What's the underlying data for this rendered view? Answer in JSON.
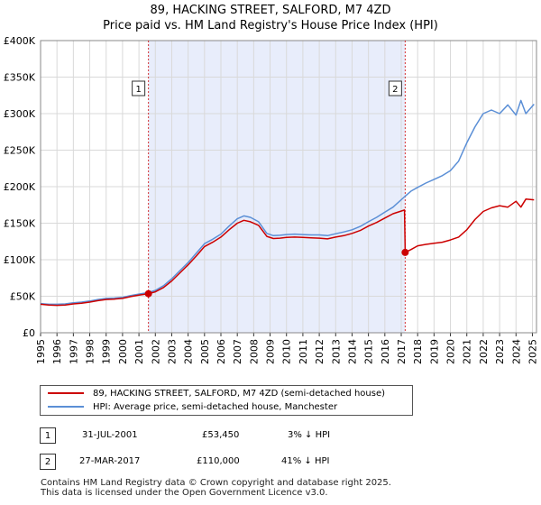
{
  "chart_data": {
    "type": "line",
    "title": "89, HACKING STREET, SALFORD, M7 4ZD",
    "subtitle": "Price paid vs. HM Land Registry's House Price Index (HPI)",
    "xlim": [
      1995,
      2025.25
    ],
    "ylim": [
      0,
      400000
    ],
    "x_ticks": [
      1995,
      1996,
      1997,
      1998,
      1999,
      2000,
      2001,
      2002,
      2003,
      2004,
      2005,
      2006,
      2007,
      2008,
      2009,
      2010,
      2011,
      2012,
      2013,
      2014,
      2015,
      2016,
      2017,
      2018,
      2019,
      2020,
      2021,
      2022,
      2023,
      2024,
      2025
    ],
    "x_tick_labels": [
      "1995",
      "1996",
      "1997",
      "1998",
      "1999",
      "2000",
      "2001",
      "2002",
      "2003",
      "2004",
      "2005",
      "2006",
      "2007",
      "2008",
      "2009",
      "2010",
      "2011",
      "2012",
      "2013",
      "2014",
      "2015",
      "2016",
      "2017",
      "2018",
      "2019",
      "2020",
      "2021",
      "2022",
      "2023",
      "2024",
      "2025"
    ],
    "y_ticks": [
      0,
      50000,
      100000,
      150000,
      200000,
      250000,
      300000,
      350000,
      400000
    ],
    "y_tick_labels": [
      "£0",
      "£50K",
      "£100K",
      "£150K",
      "£200K",
      "£250K",
      "£300K",
      "£350K",
      "£400K"
    ],
    "shaded_range": [
      2001.58,
      2017.24
    ],
    "series": [
      {
        "name": "89, HACKING STREET, SALFORD, M7 4ZD (semi-detached house)",
        "color": "#cc0000",
        "x": [
          1995,
          1995.5,
          1996,
          1996.5,
          1997,
          1997.5,
          1998,
          1998.5,
          1999,
          1999.5,
          2000,
          2000.5,
          2001,
          2001.58,
          2002,
          2002.5,
          2003,
          2003.5,
          2004,
          2004.5,
          2005,
          2005.5,
          2006,
          2006.5,
          2007,
          2007.4,
          2007.8,
          2008.3,
          2008.8,
          2009.2,
          2009.6,
          2010,
          2010.5,
          2011,
          2011.5,
          2012,
          2012.5,
          2013,
          2013.5,
          2014,
          2014.5,
          2015,
          2015.5,
          2016,
          2016.5,
          2017.2,
          2017.24,
          2017.6,
          2018,
          2018.5,
          2019,
          2019.5,
          2020,
          2020.5,
          2021,
          2021.5,
          2022,
          2022.5,
          2023,
          2023.5,
          2024,
          2024.3,
          2024.6,
          2025.1
        ],
        "values": [
          39000,
          38000,
          37500,
          38000,
          39500,
          40500,
          42000,
          44000,
          45500,
          46000,
          47000,
          49500,
          51500,
          53450,
          56000,
          62000,
          71000,
          82000,
          93000,
          105000,
          118000,
          124000,
          131000,
          141000,
          150000,
          154000,
          152000,
          147000,
          132000,
          129000,
          129500,
          130500,
          131000,
          130500,
          130000,
          129500,
          128500,
          131000,
          133000,
          136000,
          140000,
          146000,
          151000,
          157000,
          163000,
          168000,
          110000,
          114000,
          119000,
          121000,
          122500,
          124000,
          127000,
          131000,
          141000,
          155000,
          166000,
          171000,
          174000,
          172000,
          180000,
          172000,
          183000,
          182000
        ]
      },
      {
        "name": "HPI: Average price, semi-detached house, Manchester",
        "color": "#5b8fd6",
        "x": [
          1995,
          1995.5,
          1996,
          1996.5,
          1997,
          1997.5,
          1998,
          1998.5,
          1999,
          1999.5,
          2000,
          2000.5,
          2001,
          2001.58,
          2002,
          2002.5,
          2003,
          2003.5,
          2004,
          2004.5,
          2005,
          2005.5,
          2006,
          2006.5,
          2007,
          2007.4,
          2007.8,
          2008.3,
          2008.8,
          2009.2,
          2009.6,
          2010,
          2010.5,
          2011,
          2011.5,
          2012,
          2012.5,
          2013,
          2013.5,
          2014,
          2014.5,
          2015,
          2015.5,
          2016,
          2016.5,
          2017.24,
          2017.6,
          2018,
          2018.5,
          2019,
          2019.5,
          2020,
          2020.5,
          2021,
          2021.5,
          2022,
          2022.5,
          2023,
          2023.5,
          2024,
          2024.3,
          2024.6,
          2025.1
        ],
        "values": [
          40000,
          39000,
          39000,
          39500,
          41000,
          42000,
          43500,
          45500,
          47000,
          47500,
          48500,
          51000,
          53000,
          55100,
          58000,
          64500,
          74000,
          85000,
          96000,
          109000,
          122000,
          128000,
          135000,
          146000,
          156000,
          160000,
          158000,
          152000,
          136000,
          133000,
          133500,
          134500,
          135000,
          134500,
          134000,
          134000,
          133000,
          135500,
          138000,
          141000,
          145500,
          152000,
          158000,
          165000,
          172000,
          187000,
          194000,
          199000,
          205000,
          210000,
          215000,
          222000,
          235000,
          260000,
          282000,
          300000,
          305000,
          300000,
          312000,
          298000,
          318000,
          300000,
          313000
        ]
      }
    ],
    "annotations": [
      {
        "label": "1",
        "x": 2001.58,
        "value": 53450
      },
      {
        "label": "2",
        "x": 2017.24,
        "value": 110000
      }
    ]
  },
  "legend": {
    "property_label": "89, HACKING STREET, SALFORD, M7 4ZD (semi-detached house)",
    "hpi_label": "HPI: Average price, semi-detached house, Manchester"
  },
  "transactions": [
    {
      "num": "1",
      "date": "31-JUL-2001",
      "price": "£53,450",
      "hpi_diff": "3% ↓ HPI"
    },
    {
      "num": "2",
      "date": "27-MAR-2017",
      "price": "£110,000",
      "hpi_diff": "41% ↓ HPI"
    }
  ],
  "footer": {
    "line1": "Contains HM Land Registry data © Crown copyright and database right 2025.",
    "line2": "This data is licensed under the Open Government Licence v3.0."
  }
}
